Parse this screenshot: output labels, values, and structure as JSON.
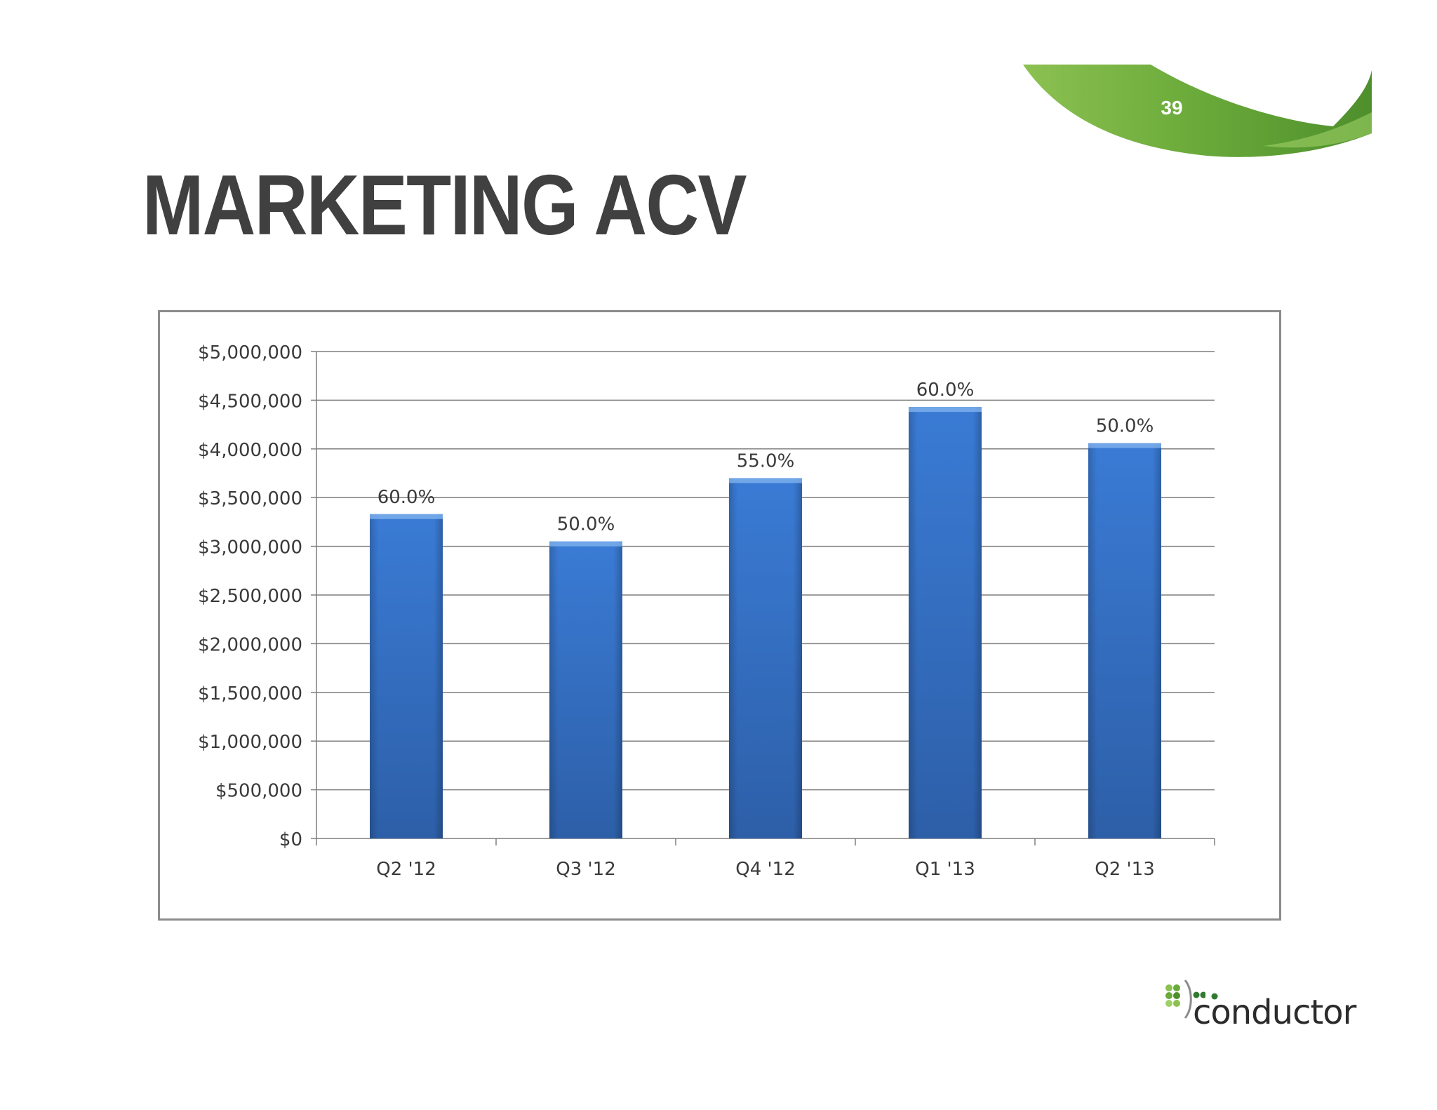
{
  "slide": {
    "title": "MARKETING ACV",
    "page_number": "39"
  },
  "logo": {
    "text": "conductor"
  },
  "colors": {
    "accent_green": "#6aaa3a",
    "accent_green_dark": "#4e8f2c",
    "bar_blue": "#3a7bd5",
    "bar_blue_dark": "#2d5fa8",
    "title_gray": "#404040",
    "gridline": "#7f7f7f"
  },
  "chart_data": {
    "type": "bar",
    "title": "",
    "xlabel": "",
    "ylabel": "",
    "categories": [
      "Q2 '12",
      "Q3 '12",
      "Q4 '12",
      "Q1 '13",
      "Q2 '13"
    ],
    "values": [
      3330000,
      3050000,
      3700000,
      4430000,
      4060000
    ],
    "data_labels": [
      "60.0%",
      "50.0%",
      "55.0%",
      "60.0%",
      "50.0%"
    ],
    "ylim": [
      0,
      5000000
    ],
    "yticks": [
      0,
      500000,
      1000000,
      1500000,
      2000000,
      2500000,
      3000000,
      3500000,
      4000000,
      4500000,
      5000000
    ],
    "ytick_labels": [
      "$0",
      "$500,000",
      "$1,000,000",
      "$1,500,000",
      "$2,000,000",
      "$2,500,000",
      "$3,000,000",
      "$3,500,000",
      "$4,000,000",
      "$4,500,000",
      "$5,000,000"
    ],
    "grid": true,
    "legend": "none"
  }
}
